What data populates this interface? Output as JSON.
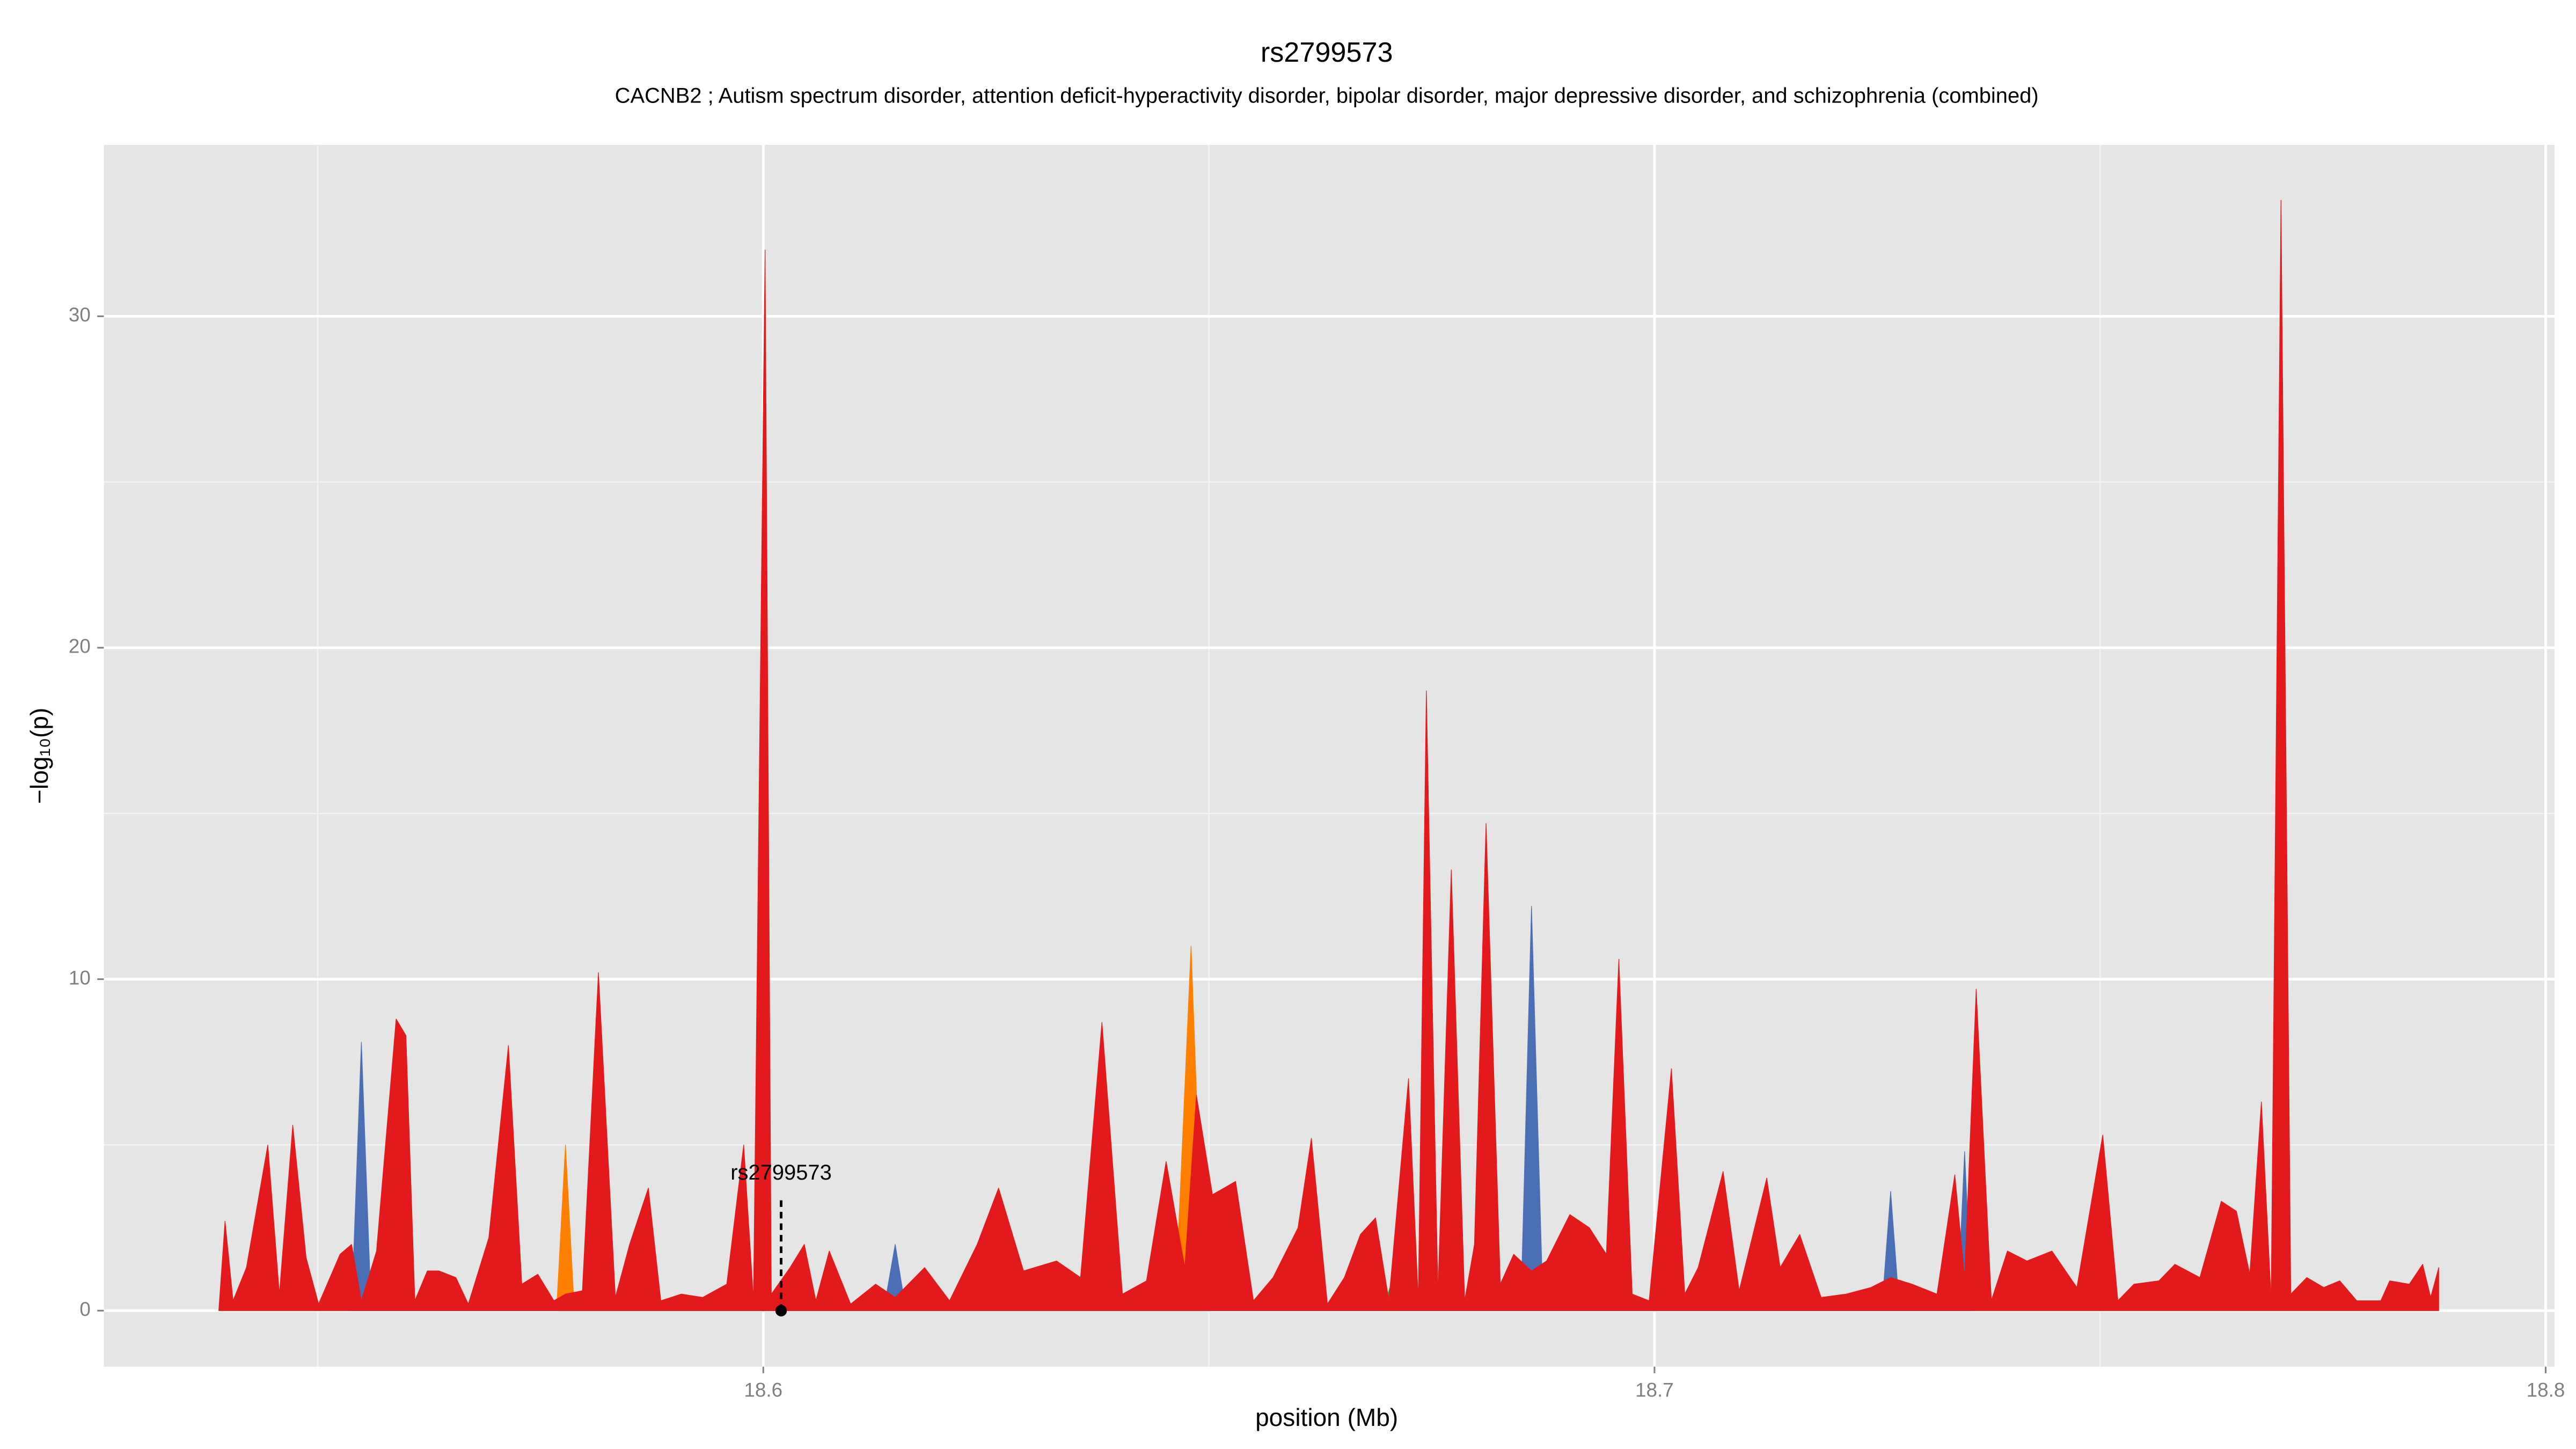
{
  "chart_data": {
    "type": "area",
    "title": "rs2799573",
    "subtitle": "CACNB2 ; Autism spectrum disorder, attention deficit-hyperactivity disorder, bipolar disorder, major depressive disorder, and schizophrenia (combined)",
    "x_label": "position (Mb)",
    "y_label": "−log₁₀(p)",
    "xlim": [
      18.526,
      18.801
    ],
    "ylim": [
      -1.69,
      35.17
    ],
    "xticks": [
      18.6,
      18.7,
      18.8
    ],
    "yticks": [
      0,
      10,
      20,
      30
    ],
    "xminor": [
      18.55,
      18.65,
      18.75
    ],
    "yminor": [
      5,
      15,
      25
    ],
    "grid": true,
    "annotation": {
      "label": "rs2799573",
      "x": 18.602,
      "y": 0
    },
    "series": [
      {
        "color": "#4a6fb5",
        "x": [
          18.5538,
          18.5549,
          18.556,
          18.6135,
          18.6148,
          18.616,
          18.685,
          18.6862,
          18.6875,
          18.7255,
          18.7265,
          18.7275,
          18.734,
          18.7348,
          18.7356
        ],
        "values": [
          0,
          8.1,
          0,
          0,
          2.0,
          0,
          0,
          12.2,
          0,
          0,
          3.6,
          0,
          0,
          4.8,
          0
        ]
      },
      {
        "color": "#ff7f00",
        "x": [
          18.5768,
          18.5778,
          18.5788,
          18.6462,
          18.648,
          18.6495
        ],
        "values": [
          0,
          5.0,
          0,
          0,
          11.0,
          0
        ]
      },
      {
        "color": "#33a02c",
        "x": [
          18.6695,
          18.6709,
          18.672
        ],
        "values": [
          0,
          1.2,
          0
        ]
      },
      {
        "color": "#e31a1c",
        "x": [
          18.5389,
          18.5396,
          18.5405,
          18.542,
          18.5444,
          18.5457,
          18.5472,
          18.5487,
          18.5501,
          18.5525,
          18.5538,
          18.5549,
          18.5566,
          18.5588,
          18.5599,
          18.5609,
          18.5623,
          18.5636,
          18.5655,
          18.5669,
          18.5692,
          18.5714,
          18.5729,
          18.5747,
          18.5765,
          18.5778,
          18.5797,
          18.5815,
          18.5834,
          18.585,
          18.5871,
          18.5885,
          18.5908,
          18.5932,
          18.5959,
          18.5978,
          18.5989,
          18.6002,
          18.6009,
          18.603,
          18.6046,
          18.6059,
          18.6074,
          18.6098,
          18.6126,
          18.6148,
          18.6181,
          18.6209,
          18.624,
          18.6264,
          18.6292,
          18.6329,
          18.6356,
          18.638,
          18.6403,
          18.643,
          18.6452,
          18.6473,
          18.6486,
          18.6504,
          18.653,
          18.655,
          18.6572,
          18.66,
          18.6615,
          18.6633,
          18.6652,
          18.667,
          18.6687,
          18.6702,
          18.6724,
          18.6735,
          18.6744,
          18.6757,
          18.6772,
          18.6787,
          18.6798,
          18.6811,
          18.6827,
          18.6842,
          18.6862,
          18.6879,
          18.6905,
          18.6927,
          18.6946,
          18.696,
          18.6975,
          18.6994,
          18.7019,
          18.7034,
          18.7049,
          18.7077,
          18.7095,
          18.7126,
          18.7141,
          18.7163,
          18.7187,
          18.7215,
          18.7243,
          18.7265,
          18.7289,
          18.7317,
          18.7337,
          18.7348,
          18.7361,
          18.7378,
          18.7396,
          18.7418,
          18.7446,
          18.7474,
          18.7503,
          18.752,
          18.7538,
          18.7566,
          18.7584,
          18.7612,
          18.7636,
          18.7653,
          18.7668,
          18.7681,
          18.7692,
          18.7703,
          18.7714,
          18.7732,
          18.7751,
          18.7769,
          18.7788,
          18.7815,
          18.7825,
          18.7847,
          18.7862,
          18.7871,
          18.788
        ],
        "values": [
          0,
          2.7,
          0.3,
          1.3,
          5.0,
          0.5,
          5.6,
          1.6,
          0.2,
          1.7,
          2.0,
          0.3,
          1.8,
          8.8,
          8.3,
          0.3,
          1.2,
          1.2,
          1.0,
          0.2,
          2.2,
          8.0,
          0.8,
          1.1,
          0.3,
          0.5,
          0.6,
          10.2,
          0.4,
          2.0,
          3.7,
          0.3,
          0.5,
          0.4,
          0.8,
          5.0,
          0.3,
          32.0,
          0.5,
          1.3,
          2.0,
          0.3,
          1.8,
          0.2,
          0.8,
          0.4,
          1.3,
          0.3,
          2.0,
          3.7,
          1.2,
          1.5,
          1.0,
          8.7,
          0.5,
          0.9,
          4.5,
          1.3,
          6.5,
          3.5,
          3.9,
          0.3,
          1.0,
          2.5,
          5.2,
          0.2,
          1.0,
          2.3,
          2.8,
          0.3,
          7.0,
          0.3,
          18.7,
          0.5,
          13.3,
          0.3,
          2.0,
          14.7,
          0.8,
          1.7,
          1.2,
          1.5,
          2.9,
          2.5,
          1.7,
          10.6,
          0.5,
          0.3,
          7.3,
          0.5,
          1.3,
          4.2,
          0.6,
          4.0,
          1.3,
          2.3,
          0.4,
          0.5,
          0.7,
          1.0,
          0.8,
          0.5,
          4.1,
          1.0,
          9.7,
          0.3,
          1.8,
          1.5,
          1.8,
          0.7,
          5.3,
          0.3,
          0.8,
          0.9,
          1.4,
          1.0,
          3.3,
          3.0,
          1.1,
          6.3,
          0.3,
          33.5,
          0.5,
          1.0,
          0.7,
          0.9,
          0.3,
          0.3,
          0.9,
          0.8,
          1.4,
          0.4,
          1.3
        ]
      }
    ]
  }
}
